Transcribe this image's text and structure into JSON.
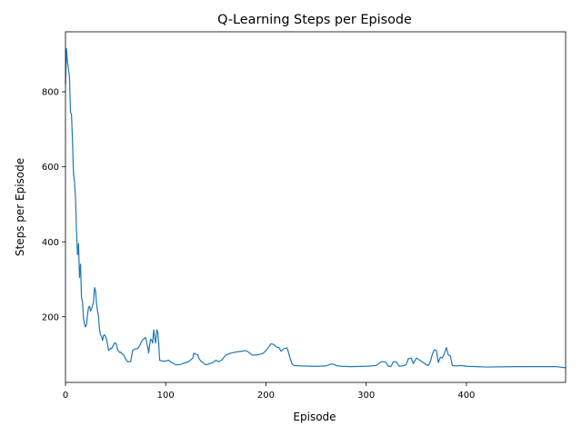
{
  "chart_data": {
    "type": "line",
    "title": "Q-Learning Steps per Episode",
    "xlabel": "Episode",
    "ylabel": "Steps per Episode",
    "xlim": [
      0,
      499
    ],
    "ylim": [
      25,
      960
    ],
    "xticks": [
      0,
      100,
      200,
      300,
      400
    ],
    "yticks": [
      200,
      400,
      600,
      800
    ],
    "grid": false,
    "legend": "none",
    "series": [
      {
        "color": "#1f77b4",
        "points": [
          [
            0,
            820
          ],
          [
            1,
            915
          ],
          [
            2,
            880
          ],
          [
            3,
            860
          ],
          [
            4,
            840
          ],
          [
            5,
            745
          ],
          [
            6,
            740
          ],
          [
            7,
            670
          ],
          [
            8,
            580
          ],
          [
            9,
            560
          ],
          [
            10,
            520
          ],
          [
            11,
            430
          ],
          [
            12,
            365
          ],
          [
            13,
            395
          ],
          [
            14,
            305
          ],
          [
            15,
            340
          ],
          [
            16,
            250
          ],
          [
            17,
            240
          ],
          [
            18,
            195
          ],
          [
            19,
            180
          ],
          [
            20,
            173
          ],
          [
            21,
            180
          ],
          [
            22,
            205
          ],
          [
            23,
            225
          ],
          [
            24,
            228
          ],
          [
            25,
            215
          ],
          [
            26,
            222
          ],
          [
            27,
            230
          ],
          [
            28,
            240
          ],
          [
            29,
            278
          ],
          [
            30,
            270
          ],
          [
            31,
            235
          ],
          [
            32,
            215
          ],
          [
            33,
            200
          ],
          [
            34,
            165
          ],
          [
            35,
            152
          ],
          [
            36,
            148
          ],
          [
            37,
            137
          ],
          [
            38,
            150
          ],
          [
            39,
            152
          ],
          [
            40,
            147
          ],
          [
            41,
            140
          ],
          [
            42,
            126
          ],
          [
            43,
            110
          ],
          [
            44,
            112
          ],
          [
            45,
            116
          ],
          [
            46,
            115
          ],
          [
            47,
            120
          ],
          [
            48,
            125
          ],
          [
            49,
            130
          ],
          [
            50,
            130
          ],
          [
            51,
            126
          ],
          [
            52,
            112
          ],
          [
            53,
            108
          ],
          [
            54,
            105
          ],
          [
            55,
            106
          ],
          [
            56,
            103
          ],
          [
            57,
            100
          ],
          [
            58,
            98
          ],
          [
            60,
            88
          ],
          [
            62,
            80
          ],
          [
            65,
            80
          ],
          [
            67,
            110
          ],
          [
            70,
            115
          ],
          [
            72,
            115
          ],
          [
            74,
            123
          ],
          [
            76,
            135
          ],
          [
            78,
            141
          ],
          [
            80,
            145
          ],
          [
            81,
            130
          ],
          [
            82,
            120
          ],
          [
            83,
            104
          ],
          [
            84,
            125
          ],
          [
            85,
            140
          ],
          [
            86,
            138
          ],
          [
            87,
            130
          ],
          [
            88,
            165
          ],
          [
            89,
            145
          ],
          [
            90,
            130
          ],
          [
            91,
            165
          ],
          [
            92,
            160
          ],
          [
            93,
            130
          ],
          [
            94,
            84
          ],
          [
            96,
            82
          ],
          [
            100,
            82
          ],
          [
            103,
            84
          ],
          [
            106,
            78
          ],
          [
            110,
            72
          ],
          [
            115,
            73
          ],
          [
            120,
            78
          ],
          [
            123,
            80
          ],
          [
            125,
            85
          ],
          [
            127,
            90
          ],
          [
            128,
            103
          ],
          [
            130,
            100
          ],
          [
            132,
            99
          ],
          [
            133,
            90
          ],
          [
            135,
            82
          ],
          [
            138,
            76
          ],
          [
            140,
            72
          ],
          [
            144,
            75
          ],
          [
            147,
            78
          ],
          [
            150,
            84
          ],
          [
            153,
            80
          ],
          [
            156,
            85
          ],
          [
            160,
            98
          ],
          [
            165,
            103
          ],
          [
            170,
            106
          ],
          [
            175,
            108
          ],
          [
            180,
            110
          ],
          [
            183,
            105
          ],
          [
            186,
            98
          ],
          [
            190,
            98
          ],
          [
            194,
            100
          ],
          [
            197,
            102
          ],
          [
            200,
            110
          ],
          [
            203,
            120
          ],
          [
            205,
            128
          ],
          [
            208,
            126
          ],
          [
            210,
            120
          ],
          [
            213,
            118
          ],
          [
            215,
            108
          ],
          [
            218,
            115
          ],
          [
            221,
            117
          ],
          [
            222,
            110
          ],
          [
            224,
            90
          ],
          [
            226,
            75
          ],
          [
            228,
            70
          ],
          [
            235,
            69
          ],
          [
            250,
            68
          ],
          [
            260,
            69
          ],
          [
            265,
            74
          ],
          [
            268,
            73
          ],
          [
            270,
            70
          ],
          [
            275,
            68
          ],
          [
            285,
            67
          ],
          [
            300,
            68
          ],
          [
            310,
            70
          ],
          [
            315,
            80
          ],
          [
            318,
            80
          ],
          [
            320,
            78
          ],
          [
            322,
            68
          ],
          [
            325,
            68
          ],
          [
            327,
            80
          ],
          [
            330,
            80
          ],
          [
            333,
            68
          ],
          [
            338,
            70
          ],
          [
            340,
            73
          ],
          [
            342,
            88
          ],
          [
            345,
            90
          ],
          [
            347,
            75
          ],
          [
            350,
            90
          ],
          [
            353,
            85
          ],
          [
            357,
            78
          ],
          [
            360,
            72
          ],
          [
            362,
            70
          ],
          [
            364,
            80
          ],
          [
            366,
            100
          ],
          [
            368,
            112
          ],
          [
            370,
            110
          ],
          [
            372,
            78
          ],
          [
            374,
            92
          ],
          [
            376,
            90
          ],
          [
            378,
            102
          ],
          [
            380,
            118
          ],
          [
            382,
            98
          ],
          [
            384,
            96
          ],
          [
            386,
            70
          ],
          [
            390,
            69
          ],
          [
            395,
            70
          ],
          [
            400,
            68
          ],
          [
            410,
            67
          ],
          [
            420,
            66
          ],
          [
            450,
            67
          ],
          [
            480,
            67
          ],
          [
            490,
            67
          ],
          [
            499,
            64
          ]
        ]
      }
    ]
  }
}
